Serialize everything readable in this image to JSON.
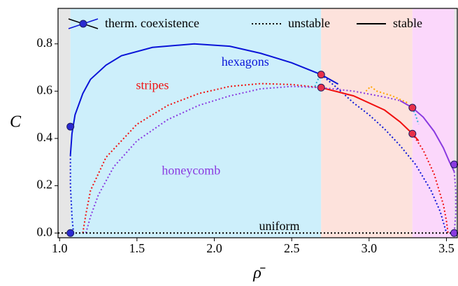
{
  "chart_data": {
    "type": "line",
    "xlabel": "ρ̄",
    "ylabel": "C",
    "xlim": [
      0.99,
      3.57
    ],
    "ylim": [
      -0.02,
      0.95
    ],
    "xticks": [
      {
        "value": 1.0,
        "label": "1.0"
      },
      1.5,
      {
        "value": 2.0,
        "label": "2.0"
      },
      2.5,
      {
        "value": 3.0,
        "label": "3.0"
      },
      3.5
    ],
    "yticks": [
      {
        "value": 0.0,
        "label": "0.0"
      },
      0.2,
      0.4,
      0.6,
      0.8
    ],
    "regions": [
      {
        "x": [
          0.99,
          1.07
        ],
        "color": "#e6e6e6"
      },
      {
        "x": [
          1.07,
          2.69
        ],
        "color": "#cdeffb"
      },
      {
        "x": [
          2.69,
          3.28
        ],
        "color": "#fde2dc"
      },
      {
        "x": [
          3.28,
          3.55
        ],
        "color": "#fbd7fb"
      },
      {
        "x": [
          3.55,
          3.57
        ],
        "color": "#e6e6e6"
      }
    ],
    "legend": [
      {
        "label": "therm. coexistence",
        "style": "marker"
      },
      {
        "label": "unstable",
        "style": "dotted"
      },
      {
        "label": "stable",
        "style": "solid"
      }
    ],
    "series": [
      {
        "color": "#0a14d8",
        "style": "solid",
        "x": [
          1.07,
          1.08,
          1.1,
          1.15,
          1.2,
          1.3,
          1.4,
          1.6,
          1.87,
          2.1,
          2.3,
          2.5,
          2.69,
          2.8
        ],
        "values": [
          0.33,
          0.42,
          0.5,
          0.59,
          0.65,
          0.71,
          0.75,
          0.785,
          0.8,
          0.79,
          0.76,
          0.72,
          0.67,
          0.63
        ]
      },
      {
        "color": "#0a14d8",
        "style": "dotted",
        "x": [
          1.07,
          1.07,
          1.08,
          1.09
        ],
        "values": [
          0.33,
          0.2,
          0.07,
          0.0
        ]
      },
      {
        "color": "#0a14d8",
        "style": "dotted",
        "x": [
          2.69,
          2.8,
          2.9,
          3.0,
          3.1,
          3.2,
          3.3,
          3.4,
          3.46,
          3.5
        ],
        "values": [
          0.67,
          0.61,
          0.55,
          0.5,
          0.44,
          0.37,
          0.29,
          0.18,
          0.09,
          0.0
        ]
      },
      {
        "color": "#f01010",
        "style": "dotted",
        "x": [
          1.15,
          1.17,
          1.2,
          1.3,
          1.5,
          1.7,
          1.9,
          2.1,
          2.3,
          2.5,
          2.69
        ],
        "values": [
          0.0,
          0.08,
          0.18,
          0.32,
          0.46,
          0.54,
          0.59,
          0.62,
          0.632,
          0.628,
          0.615
        ]
      },
      {
        "color": "#f01010",
        "style": "solid",
        "x": [
          2.69,
          2.9,
          3.1,
          3.2,
          3.28,
          3.32
        ],
        "values": [
          0.615,
          0.58,
          0.52,
          0.47,
          0.42,
          0.39
        ]
      },
      {
        "color": "#f01010",
        "style": "dotted",
        "x": [
          3.28,
          3.35,
          3.42,
          3.48,
          3.5,
          3.51
        ],
        "values": [
          0.42,
          0.35,
          0.25,
          0.12,
          0.05,
          0.0
        ]
      },
      {
        "color": "#8a3ae0",
        "style": "dotted",
        "x": [
          1.17,
          1.2,
          1.25,
          1.35,
          1.5,
          1.7,
          1.9,
          2.1,
          2.3,
          2.5,
          2.69,
          2.9,
          3.1,
          3.2
        ],
        "values": [
          0.0,
          0.07,
          0.16,
          0.28,
          0.39,
          0.48,
          0.54,
          0.58,
          0.61,
          0.62,
          0.615,
          0.6,
          0.575,
          0.56
        ]
      },
      {
        "color": "#8a3ae0",
        "style": "solid",
        "x": [
          3.2,
          3.28,
          3.35,
          3.42,
          3.48,
          3.52,
          3.55
        ],
        "values": [
          0.56,
          0.53,
          0.49,
          0.43,
          0.36,
          0.3,
          0.26
        ]
      },
      {
        "color": "#8a3ae0",
        "style": "dotted",
        "x": [
          3.55,
          3.56,
          3.56,
          3.55
        ],
        "values": [
          0.26,
          0.18,
          0.08,
          0.0
        ]
      },
      {
        "color": "#2ab0d0",
        "style": "dotted",
        "x": [
          2.65,
          2.67,
          2.69
        ],
        "values": [
          0.62,
          0.65,
          0.67
        ]
      },
      {
        "color": "#2ab0d0",
        "style": "dotted",
        "x": [
          3.28,
          3.3,
          3.32
        ],
        "values": [
          0.53,
          0.5,
          0.46
        ]
      },
      {
        "color": "#ffa500",
        "style": "dotted",
        "x": [
          2.98,
          3.01,
          3.05,
          3.15,
          3.25
        ],
        "values": [
          0.6,
          0.62,
          0.6,
          0.58,
          0.55
        ]
      },
      {
        "color": "#000000",
        "style": "dotted",
        "x": [
          0.99,
          3.57
        ],
        "values": [
          0.0,
          0.0
        ]
      }
    ],
    "points": [
      {
        "x": 1.07,
        "y": 0.45,
        "color": "#2a2ad0"
      },
      {
        "x": 1.07,
        "y": 0.0,
        "color": "#2a2ad0"
      },
      {
        "x": 2.69,
        "y": 0.67,
        "color": "#e8304a"
      },
      {
        "x": 2.69,
        "y": 0.615,
        "color": "#e8304a"
      },
      {
        "x": 3.28,
        "y": 0.53,
        "color": "#e8304a"
      },
      {
        "x": 3.28,
        "y": 0.42,
        "color": "#e8304a"
      },
      {
        "x": 3.55,
        "y": 0.29,
        "color": "#8a3ae0"
      },
      {
        "x": 3.55,
        "y": 0.0,
        "color": "#8a3ae0"
      }
    ],
    "annotations": [
      {
        "text": "hexagons",
        "x": 2.2,
        "y": 0.72,
        "color": "#0a14d8"
      },
      {
        "text": "stripes",
        "x": 1.6,
        "y": 0.62,
        "color": "#f01010"
      },
      {
        "text": "honeycomb",
        "x": 1.85,
        "y": 0.26,
        "color": "#8a3ae0"
      },
      {
        "text": "uniform",
        "x": 2.42,
        "y": 0.025,
        "color": "#000000"
      }
    ]
  }
}
